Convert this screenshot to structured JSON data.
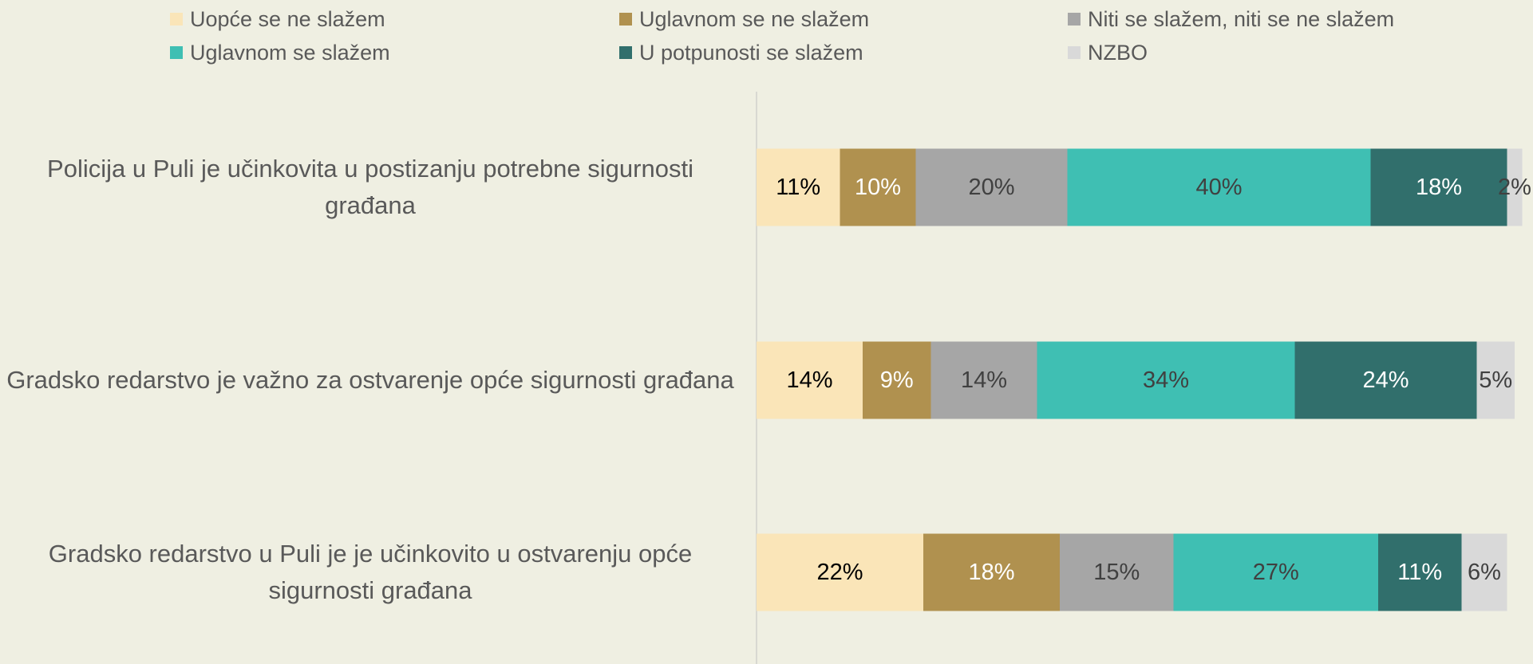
{
  "chart_data": {
    "type": "stacked_bar_horizontal",
    "categories": [
      "Policija u Puli je učinkovita u postizanju potrebne sigurnosti građana",
      "Gradsko redarstvo je važno za ostvarenje opće sigurnosti građana",
      "Gradsko redarstvo u Puli je je učinkovito u ostvarenju opće sigurnosti građana"
    ],
    "xlim": [
      0,
      100
    ],
    "series": [
      {
        "name": "Uopće se ne slažem",
        "color": "#fae5b8",
        "label_color": "#000000",
        "values": [
          11,
          14,
          22
        ],
        "value_labels": [
          "11%",
          "14%",
          "22%"
        ]
      },
      {
        "name": "Uglavnom se ne slažem",
        "color": "#b0914f",
        "label_color": "#ffffff",
        "values": [
          10,
          9,
          18
        ],
        "value_labels": [
          "10%",
          "9%",
          "18%"
        ]
      },
      {
        "name": "Niti se slažem, niti se ne slažem",
        "color": "#a6a6a6",
        "label_color": "#404040",
        "values": [
          20,
          14,
          15
        ],
        "value_labels": [
          "20%",
          "14%",
          "15%"
        ]
      },
      {
        "name": "Uglavnom se slažem",
        "color": "#3fbfb3",
        "label_color": "#404040",
        "values": [
          40,
          34,
          27
        ],
        "value_labels": [
          "40%",
          "34%",
          "27%"
        ]
      },
      {
        "name": "U potpunosti se slažem",
        "color": "#316f6c",
        "label_color": "#ffffff",
        "values": [
          18,
          24,
          11
        ],
        "value_labels": [
          "18%",
          "24%",
          "11%"
        ]
      },
      {
        "name": "NZBO",
        "color": "#d9d9d9",
        "label_color": "#404040",
        "values": [
          2,
          5,
          6
        ],
        "value_labels": [
          "2%",
          "5%",
          "6%"
        ]
      }
    ]
  }
}
